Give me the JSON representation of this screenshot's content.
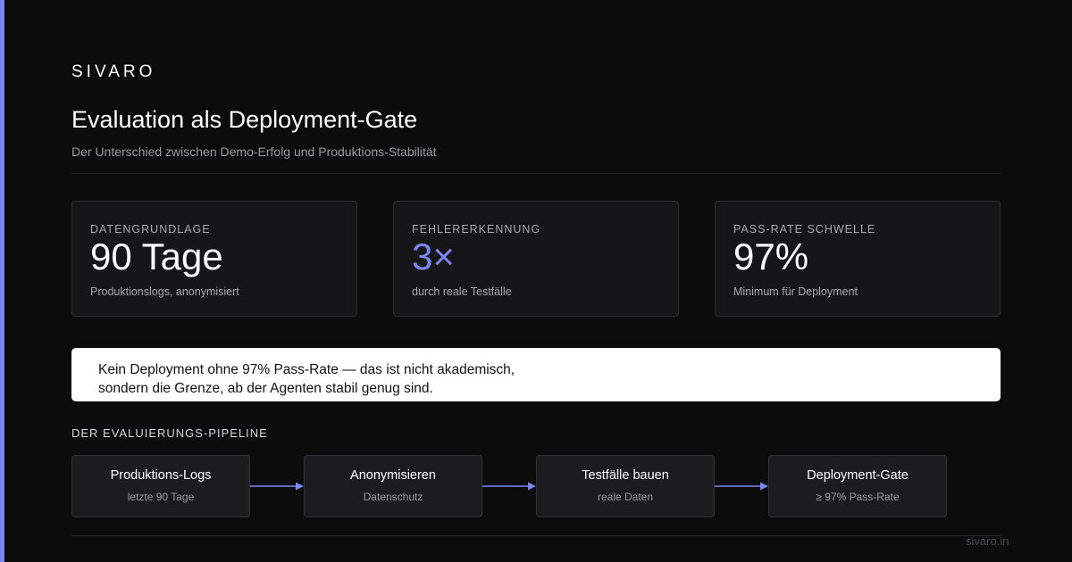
{
  "brand": "SIVARO",
  "title": "Evaluation als Deployment-Gate",
  "subtitle": "Der Unterschied zwischen Demo-Erfolg und Produktions-Stabilität",
  "stats": [
    {
      "label": "DATENGRUNDLAGE",
      "value": "90 Tage",
      "caption": "Produktionslogs, anonymisiert"
    },
    {
      "label": "FEHLERERKENNUNG",
      "value": "3×",
      "caption": "durch reale Testfälle"
    },
    {
      "label": "PASS-RATE SCHWELLE",
      "value": "97%",
      "caption": "Minimum für Deployment"
    }
  ],
  "quote": {
    "line1": "Kein Deployment ohne 97% Pass-Rate — das ist nicht akademisch,",
    "line2": "sondern die Grenze, ab der Agenten stabil genug sind."
  },
  "pipeline": {
    "heading": "DER EVALUIERUNGS-PIPELINE",
    "steps": [
      {
        "title": "Produktions-Logs",
        "sub": "letzte 90 Tage"
      },
      {
        "title": "Anonymisieren",
        "sub": "Datenschutz"
      },
      {
        "title": "Testfälle bauen",
        "sub": "reale Daten"
      },
      {
        "title": "Deployment-Gate",
        "sub": "≥ 97% Pass-Rate"
      }
    ]
  },
  "footer": "sivaro.in",
  "colors": {
    "accent": "#7c86f0",
    "background": "#0c0c0d",
    "card": "#161618"
  }
}
